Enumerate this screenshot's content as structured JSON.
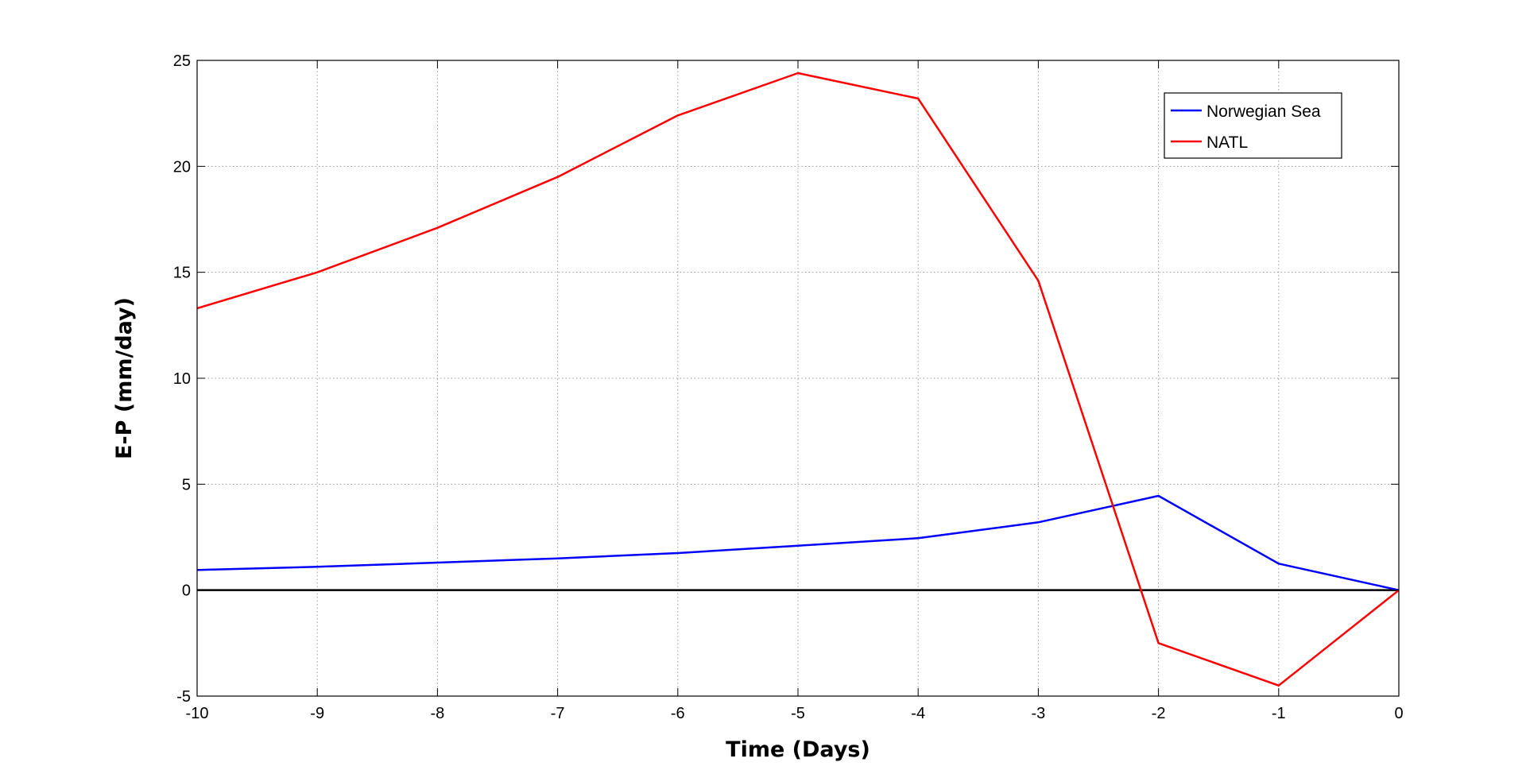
{
  "chart_data": {
    "type": "line",
    "title": "",
    "xlabel": "Time (Days)",
    "ylabel": "E-P (mm/day)",
    "xlim": [
      -10,
      0
    ],
    "ylim": [
      -5,
      25
    ],
    "xticks": [
      -10,
      -9,
      -8,
      -7,
      -6,
      -5,
      -4,
      -3,
      -2,
      -1,
      0
    ],
    "yticks": [
      -5,
      0,
      5,
      10,
      15,
      20,
      25
    ],
    "grid": true,
    "legend_position": "top-right",
    "zero_line": {
      "y": 0,
      "color": "#000000"
    },
    "x": [
      -10,
      -9,
      -8,
      -7,
      -6,
      -5,
      -4,
      -3,
      -2,
      -1,
      0
    ],
    "series": [
      {
        "name": "Norwegian Sea",
        "color": "#0000ff",
        "values": [
          0.95,
          1.1,
          1.3,
          1.5,
          1.75,
          2.1,
          2.45,
          3.2,
          4.45,
          1.25,
          0
        ]
      },
      {
        "name": "NATL",
        "color": "#ff0000",
        "values": [
          13.3,
          15.0,
          17.1,
          19.5,
          22.4,
          24.4,
          23.2,
          14.6,
          -2.5,
          -4.5,
          0
        ]
      }
    ]
  }
}
